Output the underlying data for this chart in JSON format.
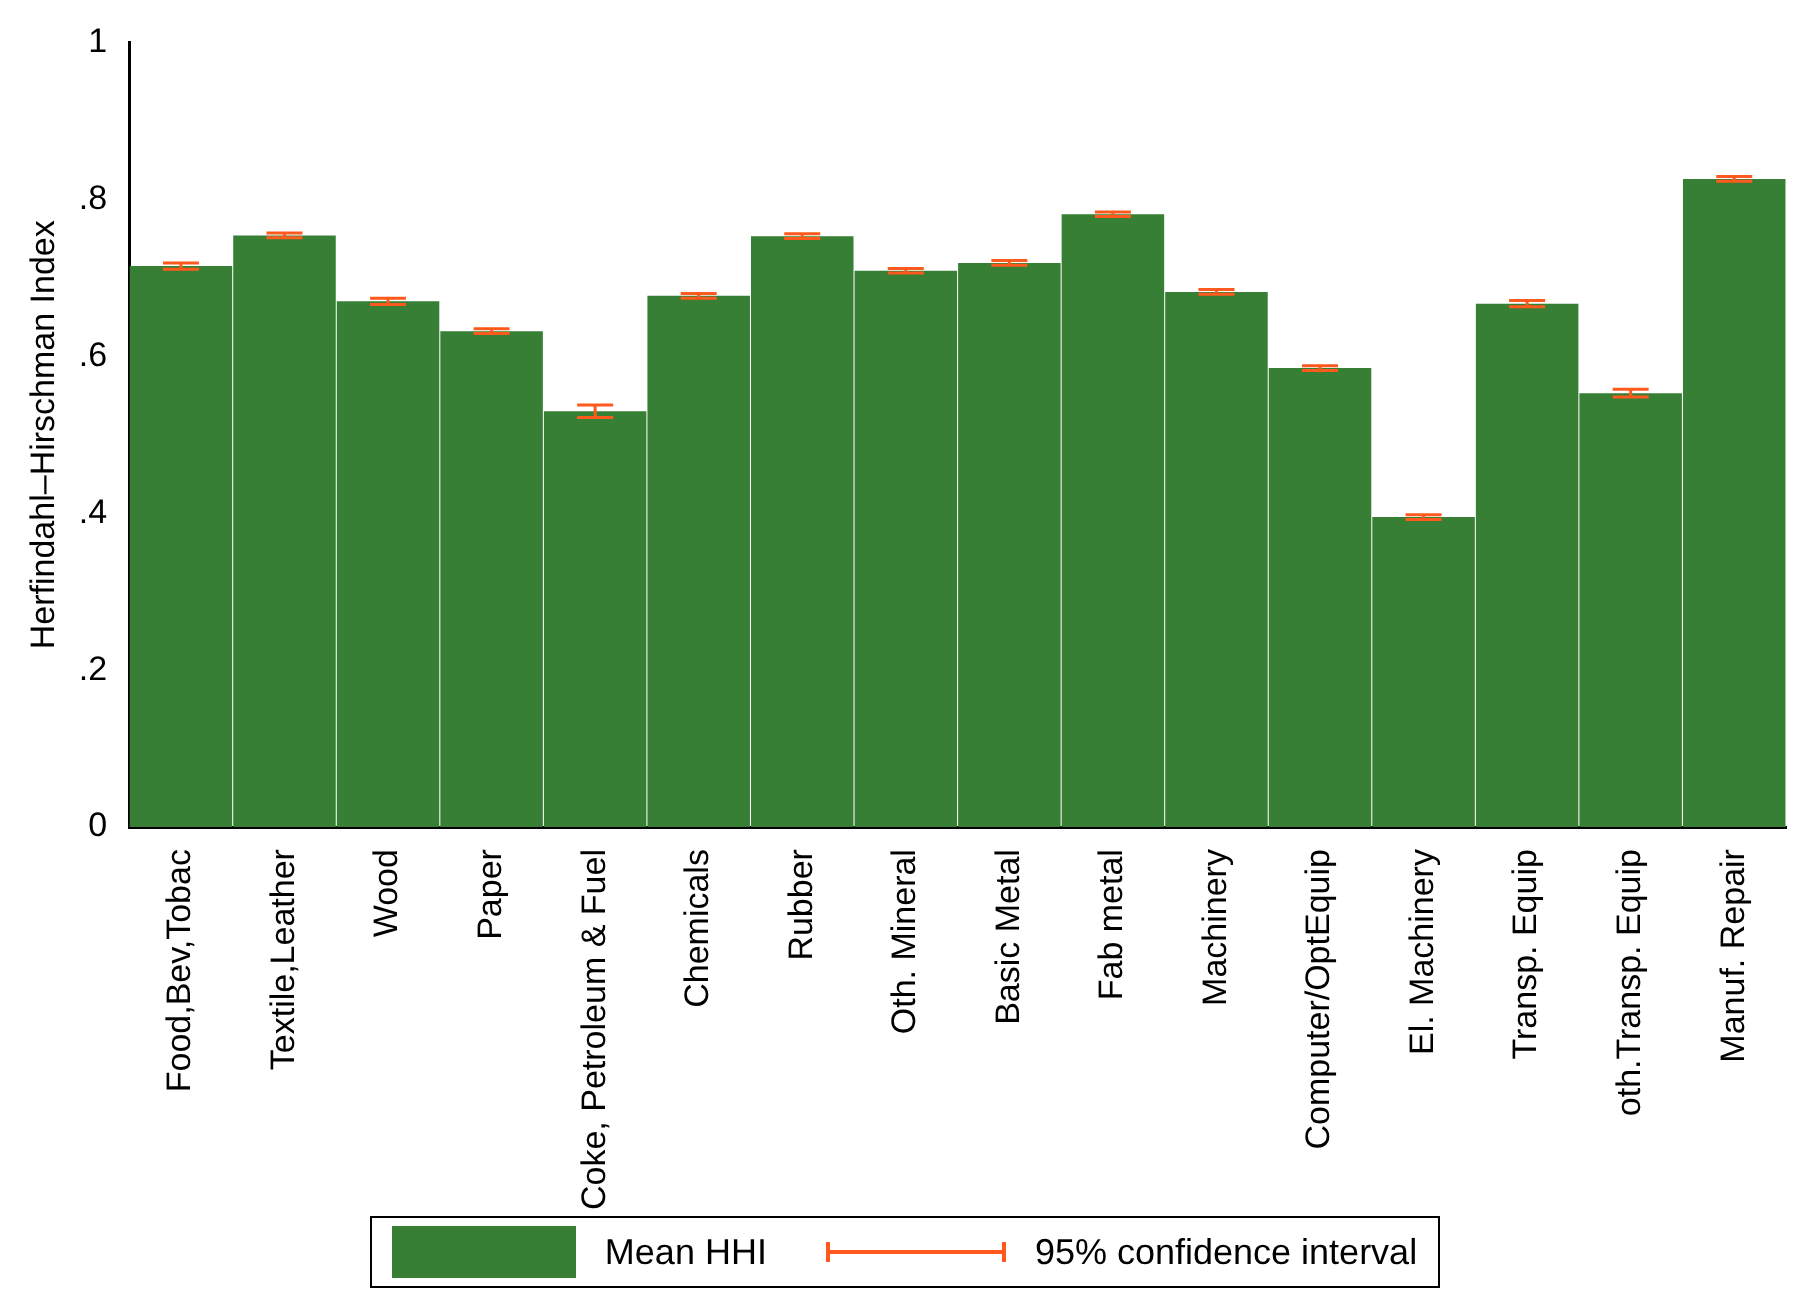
{
  "chart_data": {
    "type": "bar",
    "ylabel": "Herfindahl–Hirschman Index",
    "categories": [
      "Food,Bev,Tobac",
      "Textile,Leather",
      "Wood",
      "Paper",
      "Coke, Petroleum & Fuel",
      "Chemicals",
      "Rubber",
      "Oth. Mineral",
      "Basic Metal",
      "Fab metal",
      "Machinery",
      "Computer/OptEquip",
      "El. Machinery",
      "Transp. Equip",
      "oth.Transp. Equip",
      "Manuf. Repair"
    ],
    "series": [
      {
        "name": "Mean HHI",
        "color": "#367f34",
        "values": [
          0.715,
          0.754,
          0.67,
          0.632,
          0.53,
          0.677,
          0.753,
          0.709,
          0.719,
          0.781,
          0.682,
          0.585,
          0.395,
          0.667,
          0.553,
          0.826
        ],
        "errors": [
          0.004,
          0.003,
          0.004,
          0.003,
          0.008,
          0.003,
          0.003,
          0.003,
          0.003,
          0.003,
          0.003,
          0.003,
          0.003,
          0.004,
          0.005,
          0.003
        ]
      }
    ],
    "annotations": [
      "95% confidence interval"
    ],
    "ylim": [
      0,
      1
    ],
    "yticks": [
      0,
      {
        "value": 0.2,
        "label": ".2"
      },
      {
        "value": 0.4,
        "label": ".4"
      },
      {
        "value": 0.6,
        "label": ".6"
      },
      {
        "value": 0.8,
        "label": ".8"
      },
      1
    ],
    "grid": false,
    "legend": "bottom"
  }
}
